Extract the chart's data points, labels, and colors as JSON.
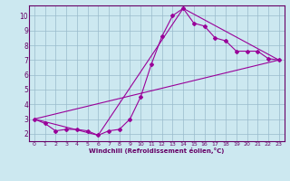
{
  "xlabel": "Windchill (Refroidissement éolien,°C)",
  "background_color": "#cce8f0",
  "line_color": "#990099",
  "grid_color": "#99bbcc",
  "xlim": [
    -0.5,
    23.5
  ],
  "ylim": [
    1.5,
    10.7
  ],
  "xticks": [
    0,
    1,
    2,
    3,
    4,
    5,
    6,
    7,
    8,
    9,
    10,
    11,
    12,
    13,
    14,
    15,
    16,
    17,
    18,
    19,
    20,
    21,
    22,
    23
  ],
  "yticks": [
    2,
    3,
    4,
    5,
    6,
    7,
    8,
    9,
    10
  ],
  "curve1_x": [
    0,
    1,
    2,
    3,
    4,
    5,
    6,
    7,
    8,
    9,
    10,
    11,
    12,
    13,
    14,
    15,
    16,
    17,
    18,
    19,
    20,
    21,
    22,
    23
  ],
  "curve1_y": [
    3.0,
    2.7,
    2.2,
    2.3,
    2.3,
    2.2,
    1.9,
    2.2,
    2.3,
    3.0,
    4.5,
    6.7,
    8.6,
    10.0,
    10.5,
    9.5,
    9.3,
    8.5,
    8.3,
    7.6,
    7.6,
    7.6,
    7.1,
    7.0
  ],
  "curve2_x": [
    0,
    6,
    14,
    23
  ],
  "curve2_y": [
    3.0,
    1.9,
    10.5,
    7.0
  ],
  "curve3_x": [
    0,
    23
  ],
  "curve3_y": [
    3.0,
    7.0
  ],
  "xlabel_fontsize": 5.0,
  "tick_fontsize_x": 4.5,
  "tick_fontsize_y": 5.5,
  "label_color": "#660066",
  "spine_color": "#660066"
}
